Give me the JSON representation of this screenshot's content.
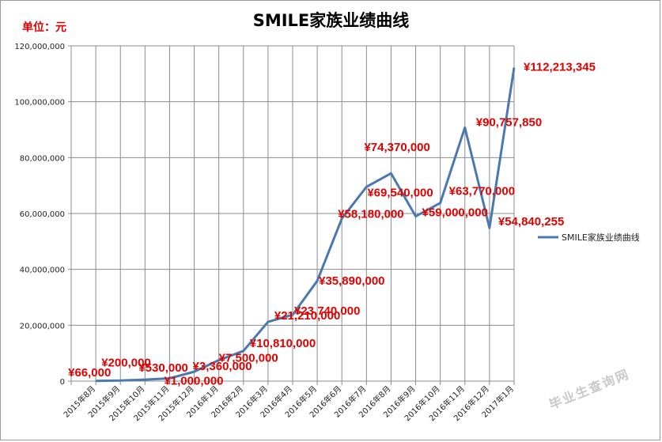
{
  "chart_data": {
    "type": "line",
    "title": "SMILE家族业绩曲线",
    "unit_label": "单位：元",
    "categories": [
      "2015年8月",
      "2015年9月",
      "2015年10月",
      "2015年11月",
      "2015年12月",
      "2016年1月",
      "2016年2月",
      "2016年3月",
      "2016年4月",
      "2016年5月",
      "2016年6月",
      "2016年7月",
      "2016年8月",
      "2016年9月",
      "2016年10月",
      "2016年11月",
      "2016年12月",
      "2017年1月"
    ],
    "series": [
      {
        "name": "SMILE家族业绩曲线",
        "color": "#4a78b0",
        "values": [
          66000,
          200000,
          530000,
          1000000,
          3360000,
          7500000,
          10810000,
          21210000,
          23740000,
          35890000,
          58180000,
          69540000,
          74370000,
          59000000,
          63770000,
          90757850,
          54840255,
          112213345
        ]
      }
    ],
    "data_labels": [
      "¥66,000",
      "¥200,000",
      "¥530,000",
      "¥1,000,000",
      "¥3,360,000",
      "¥7,500,000",
      "¥10,810,000",
      "¥21,210,000",
      "¥23,740,000",
      "¥35,890,000",
      "¥58,180,000",
      "¥69,540,000",
      "¥74,370,000",
      "¥59,000,000",
      "¥63,770,000",
      "¥90,757,850",
      "¥54,840,255",
      "¥112,213,345"
    ],
    "y_ticks": [
      "0",
      "20,000,000",
      "40,000,000",
      "60,000,000",
      "80,000,000",
      "100,000,000",
      "120,000,000"
    ],
    "ylim": [
      0,
      120000000
    ],
    "grid": true,
    "legend_position": "right",
    "label_color": "#e00000"
  },
  "watermark": "毕业生查询网"
}
